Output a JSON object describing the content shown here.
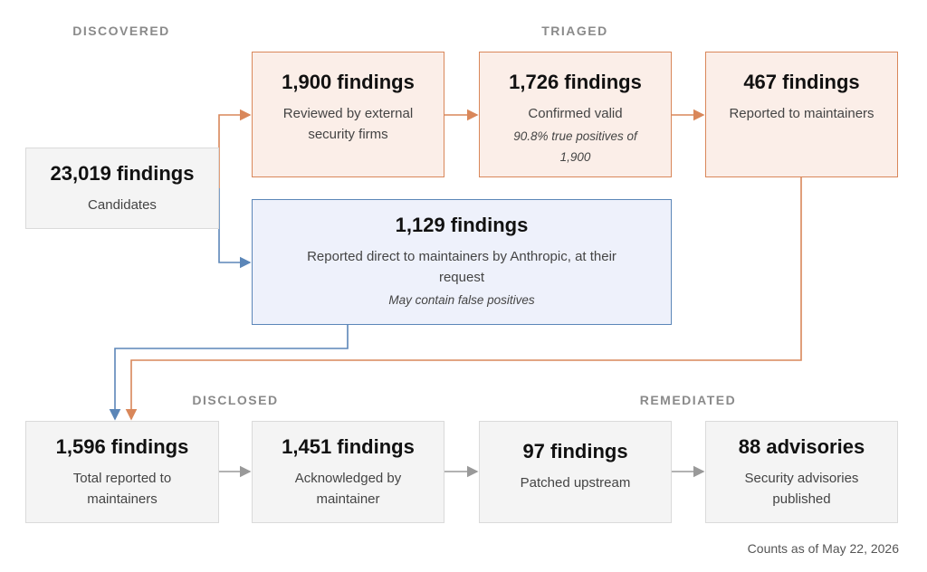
{
  "stages": [
    "DISCOVERED",
    "TRIAGED",
    "DISCLOSED",
    "REMEDIATED"
  ],
  "nodes": [
    {
      "title": "23,019 findings",
      "subtitle": "Candidates"
    },
    {
      "title": "1,900 findings",
      "subtitle": "Reviewed by external security firms"
    },
    {
      "title": "1,726 findings",
      "subtitle": "Confirmed valid",
      "note": "90.8% true positives of 1,900"
    },
    {
      "title": "467 findings",
      "subtitle": "Reported to maintainers"
    },
    {
      "title": "1,129 findings",
      "subtitle": "Reported direct to maintainers by Anthropic, at their request",
      "note": "May contain false positives"
    },
    {
      "title": "1,596 findings",
      "subtitle": "Total reported to maintainers"
    },
    {
      "title": "1,451 findings",
      "subtitle": "Acknowledged by maintainer"
    },
    {
      "title": "97 findings",
      "subtitle": "Patched upstream"
    },
    {
      "title": "88 advisories",
      "subtitle": "Security advisories published"
    }
  ],
  "footer": "Counts as of May 22, 2026"
}
